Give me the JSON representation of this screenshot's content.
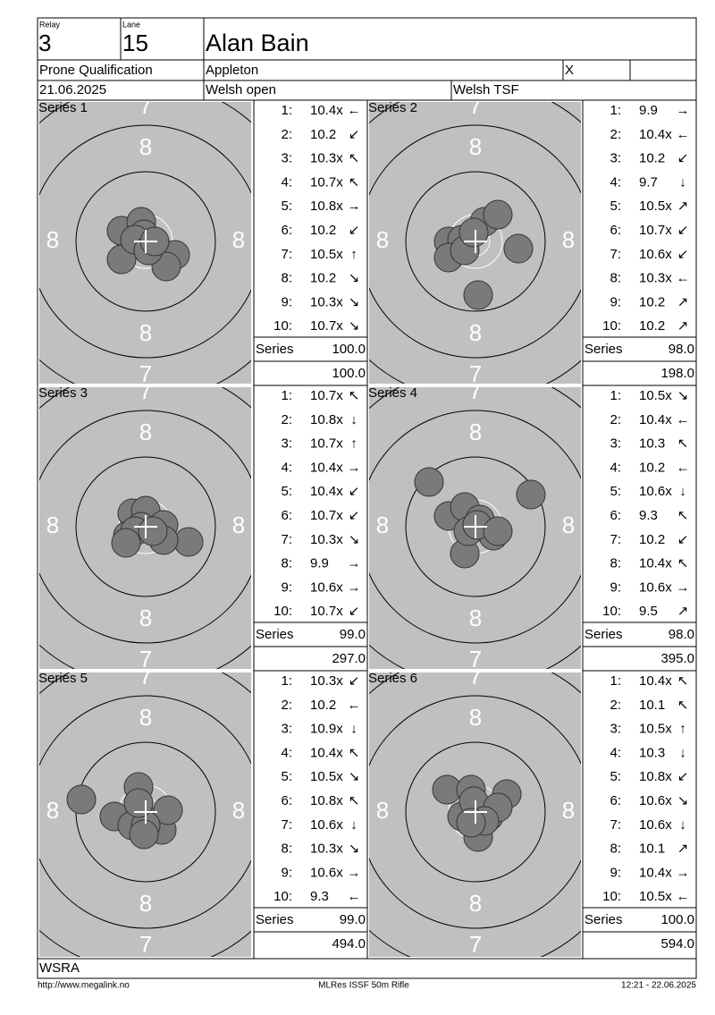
{
  "header": {
    "relay_label": "Relay",
    "relay": "3",
    "lane_label": "Lane",
    "lane": "15",
    "name": "Alan Bain",
    "event": "Prone Qualification",
    "club": "Appleton",
    "mark": "X",
    "date": "21.06.2025",
    "competition": "Welsh open",
    "organizer": "Welsh TSF"
  },
  "target": {
    "ring_8": "8",
    "ring_7": "7"
  },
  "series": [
    {
      "title": "Series 1",
      "shots": [
        [
          "1:",
          "10.4x",
          "←"
        ],
        [
          "2:",
          "10.2",
          "↙"
        ],
        [
          "3:",
          "10.3x",
          "↖"
        ],
        [
          "4:",
          "10.7x",
          "↖"
        ],
        [
          "5:",
          "10.8x",
          "→"
        ],
        [
          "6:",
          "10.2",
          "↙"
        ],
        [
          "7:",
          "10.5x",
          "↑"
        ],
        [
          "8:",
          "10.2",
          "↘"
        ],
        [
          "9:",
          "10.3x",
          "↘"
        ],
        [
          "10:",
          "10.7x",
          "↘"
        ]
      ],
      "series_label": "Series",
      "series_total": "100.0",
      "running_total": "100.0"
    },
    {
      "title": "Series 2",
      "shots": [
        [
          "1:",
          "9.9",
          "→"
        ],
        [
          "2:",
          "10.4x",
          "←"
        ],
        [
          "3:",
          "10.2",
          "↙"
        ],
        [
          "4:",
          "9.7",
          "↓"
        ],
        [
          "5:",
          "10.5x",
          "↗"
        ],
        [
          "6:",
          "10.7x",
          "↙"
        ],
        [
          "7:",
          "10.6x",
          "↙"
        ],
        [
          "8:",
          "10.3x",
          "←"
        ],
        [
          "9:",
          "10.2",
          "↗"
        ],
        [
          "10:",
          "10.2",
          "↗"
        ]
      ],
      "series_label": "Series",
      "series_total": "98.0",
      "running_total": "198.0"
    },
    {
      "title": "Series 3",
      "shots": [
        [
          "1:",
          "10.7x",
          "↖"
        ],
        [
          "2:",
          "10.8x",
          "↓"
        ],
        [
          "3:",
          "10.7x",
          "↑"
        ],
        [
          "4:",
          "10.4x",
          "→"
        ],
        [
          "5:",
          "10.4x",
          "↙"
        ],
        [
          "6:",
          "10.7x",
          "↙"
        ],
        [
          "7:",
          "10.3x",
          "↘"
        ],
        [
          "8:",
          "9.9",
          "→"
        ],
        [
          "9:",
          "10.6x",
          "→"
        ],
        [
          "10:",
          "10.7x",
          "↙"
        ]
      ],
      "series_label": "Series",
      "series_total": "99.0",
      "running_total": "297.0"
    },
    {
      "title": "Series 4",
      "shots": [
        [
          "1:",
          "10.5x",
          "↘"
        ],
        [
          "2:",
          "10.4x",
          "←"
        ],
        [
          "3:",
          "10.3",
          "↖"
        ],
        [
          "4:",
          "10.2",
          "←"
        ],
        [
          "5:",
          "10.6x",
          "↓"
        ],
        [
          "6:",
          "9.3",
          "↖"
        ],
        [
          "7:",
          "10.2",
          "↙"
        ],
        [
          "8:",
          "10.4x",
          "↖"
        ],
        [
          "9:",
          "10.6x",
          "→"
        ],
        [
          "10:",
          "9.5",
          "↗"
        ]
      ],
      "series_label": "Series",
      "series_total": "98.0",
      "running_total": "395.0"
    },
    {
      "title": "Series 5",
      "shots": [
        [
          "1:",
          "10.3x",
          "↙"
        ],
        [
          "2:",
          "10.2",
          "←"
        ],
        [
          "3:",
          "10.9x",
          "↓"
        ],
        [
          "4:",
          "10.4x",
          "↖"
        ],
        [
          "5:",
          "10.5x",
          "↘"
        ],
        [
          "6:",
          "10.8x",
          "↖"
        ],
        [
          "7:",
          "10.6x",
          "↓"
        ],
        [
          "8:",
          "10.3x",
          "↘"
        ],
        [
          "9:",
          "10.6x",
          "→"
        ],
        [
          "10:",
          "9.3",
          "←"
        ]
      ],
      "series_label": "Series",
      "series_total": "99.0",
      "running_total": "494.0"
    },
    {
      "title": "Series 6",
      "shots": [
        [
          "1:",
          "10.4x",
          "↖"
        ],
        [
          "2:",
          "10.1",
          "↖"
        ],
        [
          "3:",
          "10.5x",
          "↑"
        ],
        [
          "4:",
          "10.3",
          "↓"
        ],
        [
          "5:",
          "10.8x",
          "↙"
        ],
        [
          "6:",
          "10.6x",
          "↘"
        ],
        [
          "7:",
          "10.6x",
          "↓"
        ],
        [
          "8:",
          "10.1",
          "↗"
        ],
        [
          "9:",
          "10.4x",
          "→"
        ],
        [
          "10:",
          "10.5x",
          "←"
        ]
      ],
      "series_label": "Series",
      "series_total": "100.0",
      "running_total": "594.0"
    }
  ],
  "footer": {
    "organization": "WSRA",
    "url": "http://www.megalink.no",
    "software": "MLRes ISSF 50m Rifle",
    "timestamp": "12:21 - 22.06.2025"
  }
}
